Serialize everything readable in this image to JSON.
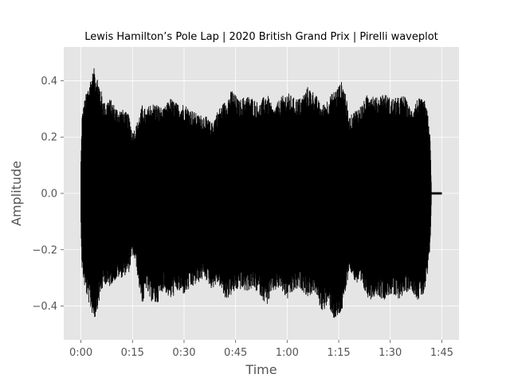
{
  "chart_data": {
    "type": "area",
    "title": "Lewis Hamilton’s Pole Lap | 2020 British Grand Prix | Pirelli waveplot",
    "xlabel": "Time",
    "ylabel": "Amplitude",
    "xlim": [
      -5,
      110
    ],
    "ylim": [
      -0.52,
      0.52
    ],
    "grid": true,
    "colors": {
      "background": "#E5E5E5",
      "grid": "#FFFFFF",
      "wave": "#000000"
    },
    "xticks": [
      {
        "value": 0,
        "label": "0:00"
      },
      {
        "value": 15,
        "label": "0:15"
      },
      {
        "value": 30,
        "label": "0:30"
      },
      {
        "value": 45,
        "label": "0:45"
      },
      {
        "value": 60,
        "label": "1:00"
      },
      {
        "value": 75,
        "label": "1:15"
      },
      {
        "value": 90,
        "label": "1:30"
      },
      {
        "value": 105,
        "label": "1:45"
      }
    ],
    "yticks": [
      {
        "value": -0.4,
        "label": "−0.4"
      },
      {
        "value": -0.2,
        "label": "−0.2"
      },
      {
        "value": 0.0,
        "label": "0.0"
      },
      {
        "value": 0.2,
        "label": "0.2"
      },
      {
        "value": 0.4,
        "label": "0.4"
      }
    ],
    "envelope": {
      "unit_x": "seconds",
      "time": [
        0,
        0.3,
        1,
        2,
        3,
        4,
        5,
        6,
        7,
        8,
        9,
        10,
        11,
        12,
        13,
        14,
        15,
        16,
        17,
        18,
        19,
        20,
        22,
        24,
        26,
        28,
        30,
        32,
        34,
        36,
        38,
        40,
        42,
        44,
        46,
        48,
        50,
        52,
        54,
        56,
        58,
        60,
        62,
        64,
        66,
        68,
        70,
        72,
        74,
        76,
        77,
        78,
        80,
        82,
        84,
        86,
        88,
        90,
        92,
        94,
        96,
        98,
        100,
        101,
        101.6,
        102,
        105
      ],
      "upper": [
        0.12,
        0.28,
        0.33,
        0.38,
        0.42,
        0.45,
        0.41,
        0.36,
        0.32,
        0.34,
        0.33,
        0.31,
        0.3,
        0.3,
        0.29,
        0.28,
        0.22,
        0.24,
        0.28,
        0.32,
        0.29,
        0.32,
        0.32,
        0.3,
        0.34,
        0.32,
        0.32,
        0.3,
        0.28,
        0.28,
        0.25,
        0.3,
        0.33,
        0.37,
        0.33,
        0.35,
        0.34,
        0.32,
        0.36,
        0.3,
        0.34,
        0.36,
        0.34,
        0.34,
        0.38,
        0.36,
        0.31,
        0.34,
        0.37,
        0.4,
        0.36,
        0.27,
        0.3,
        0.32,
        0.37,
        0.34,
        0.36,
        0.34,
        0.34,
        0.35,
        0.3,
        0.34,
        0.33,
        0.28,
        0.2,
        0.004,
        0.004
      ],
      "lower": [
        -0.12,
        -0.27,
        -0.33,
        -0.38,
        -0.42,
        -0.45,
        -0.4,
        -0.35,
        -0.32,
        -0.34,
        -0.32,
        -0.31,
        -0.3,
        -0.3,
        -0.29,
        -0.28,
        -0.22,
        -0.25,
        -0.34,
        -0.4,
        -0.34,
        -0.38,
        -0.4,
        -0.34,
        -0.38,
        -0.35,
        -0.36,
        -0.34,
        -0.32,
        -0.3,
        -0.34,
        -0.32,
        -0.38,
        -0.36,
        -0.34,
        -0.35,
        -0.34,
        -0.36,
        -0.4,
        -0.35,
        -0.34,
        -0.38,
        -0.35,
        -0.34,
        -0.37,
        -0.35,
        -0.42,
        -0.4,
        -0.46,
        -0.42,
        -0.36,
        -0.27,
        -0.32,
        -0.34,
        -0.38,
        -0.36,
        -0.38,
        -0.36,
        -0.38,
        -0.36,
        -0.34,
        -0.38,
        -0.36,
        -0.28,
        -0.2,
        -0.004,
        -0.004
      ]
    }
  }
}
